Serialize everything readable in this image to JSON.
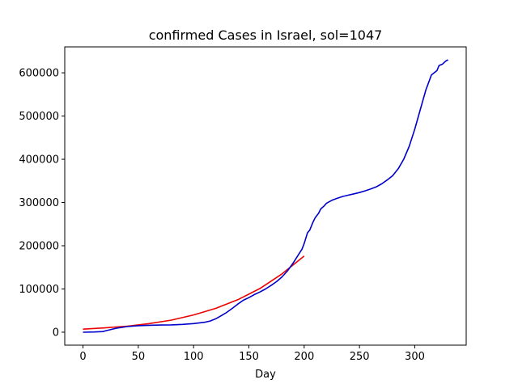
{
  "chart_data": {
    "type": "line",
    "title": "confirmed Cases in Israel, sol=1047",
    "xlabel": "Day",
    "ylabel": "",
    "xlim": [
      -16.5,
      346.5
    ],
    "ylim": [
      -30000,
      660000
    ],
    "xticks": [
      0,
      50,
      100,
      150,
      200,
      250,
      300
    ],
    "yticks": [
      0,
      100000,
      200000,
      300000,
      400000,
      500000,
      600000
    ],
    "grid": false,
    "series": [
      {
        "color": "#0000cc",
        "x": [
          0,
          10,
          18,
          20,
          30,
          40,
          50,
          60,
          70,
          80,
          90,
          100,
          110,
          115,
          120,
          125,
          130,
          135,
          140,
          145,
          150,
          155,
          160,
          165,
          170,
          175,
          180,
          185,
          190,
          195,
          198,
          200,
          203,
          205,
          208,
          210,
          213,
          215,
          218,
          220,
          225,
          230,
          235,
          240,
          245,
          250,
          255,
          260,
          265,
          270,
          275,
          280,
          285,
          290,
          295,
          300,
          305,
          310,
          315,
          320,
          322,
          325,
          328,
          330
        ],
        "y": [
          0,
          500,
          1500,
          3000,
          9000,
          13000,
          15000,
          16000,
          16500,
          17000,
          18000,
          20000,
          23000,
          26000,
          31000,
          38000,
          46000,
          55000,
          65000,
          74000,
          80000,
          87000,
          93000,
          100000,
          108000,
          117000,
          128000,
          142000,
          160000,
          180000,
          192000,
          205000,
          230000,
          236000,
          255000,
          265000,
          275000,
          285000,
          292000,
          298000,
          305000,
          310000,
          314000,
          317000,
          320000,
          323000,
          327000,
          331000,
          336000,
          343000,
          352000,
          362000,
          378000,
          400000,
          430000,
          470000,
          515000,
          560000,
          595000,
          605000,
          617000,
          620000,
          627000,
          630000
        ]
      },
      {
        "color": "#ee0000",
        "x": [
          0,
          20,
          40,
          60,
          80,
          100,
          120,
          140,
          160,
          180,
          200
        ],
        "y": [
          7000,
          10000,
          14000,
          20000,
          28000,
          40000,
          55000,
          75000,
          101000,
          135000,
          176000
        ]
      }
    ]
  }
}
